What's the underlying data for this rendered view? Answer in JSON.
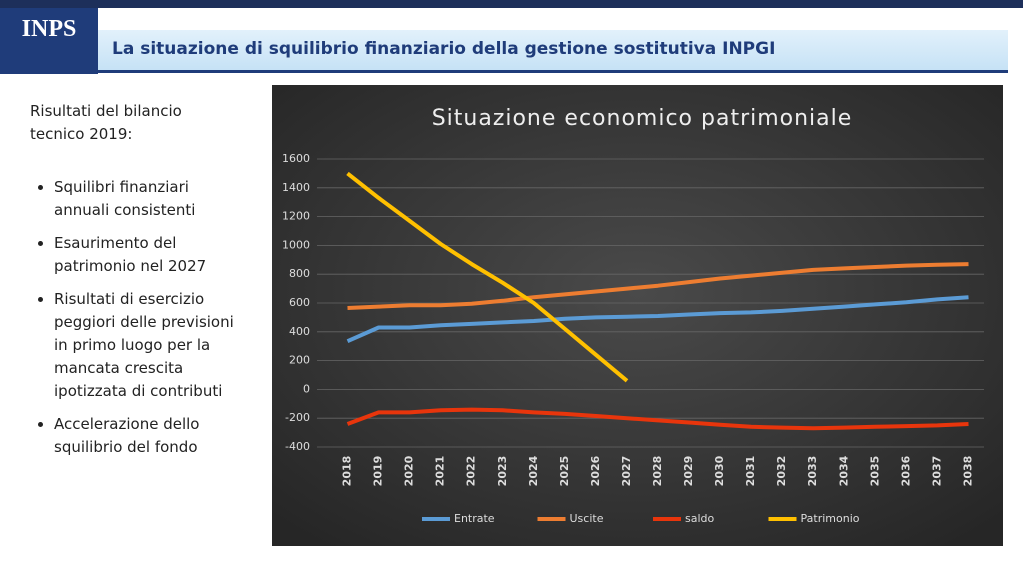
{
  "logo": "INPS",
  "slide_title": "La situazione di squilibrio finanziario della gestione sostitutiva INPGI",
  "intro": "Risultati del bilancio tecnico 2019:",
  "bullets": [
    "Squilibri finanziari annuali consistenti",
    "Esaurimento del patrimonio nel 2027",
    "Risultati di esercizio peggiori delle previsioni in primo luogo per la mancata crescita ipotizzata di contributi",
    "Accelerazione dello squilibrio del fondo"
  ],
  "chart_data": {
    "type": "line",
    "title": "Situazione economico patrimoniale",
    "categories": [
      "2018",
      "2019",
      "2020",
      "2021",
      "2022",
      "2023",
      "2024",
      "2025",
      "2026",
      "2027",
      "2028",
      "2029",
      "2030",
      "2031",
      "2032",
      "2033",
      "2034",
      "2035",
      "2036",
      "2037",
      "2038"
    ],
    "series": [
      {
        "name": "Entrate",
        "color": "#5b9bd5",
        "values": [
          335,
          430,
          430,
          445,
          455,
          465,
          475,
          490,
          500,
          505,
          510,
          520,
          530,
          535,
          545,
          560,
          575,
          590,
          605,
          625,
          640
        ]
      },
      {
        "name": "Uscite",
        "color": "#ed7d31",
        "values": [
          565,
          575,
          585,
          585,
          595,
          615,
          640,
          660,
          680,
          700,
          720,
          745,
          770,
          790,
          810,
          830,
          840,
          850,
          860,
          865,
          870
        ]
      },
      {
        "name": "saldo",
        "color": "#e8350c",
        "values": [
          -240,
          -160,
          -160,
          -145,
          -140,
          -145,
          -160,
          -170,
          -185,
          -200,
          -215,
          -230,
          -245,
          -260,
          -265,
          -270,
          -265,
          -260,
          -255,
          -250,
          -240
        ]
      },
      {
        "name": "Patrimonio",
        "color": "#ffc000",
        "values": [
          1500,
          1330,
          1170,
          1010,
          870,
          740,
          600,
          420,
          240,
          60,
          null,
          null,
          null,
          null,
          null,
          null,
          null,
          null,
          null,
          null,
          null
        ]
      }
    ],
    "ylim": [
      -400,
      1600
    ],
    "yticks": [
      -400,
      -200,
      0,
      200,
      400,
      600,
      800,
      1000,
      1200,
      1400,
      1600
    ],
    "grid": true,
    "legend": "bottom"
  }
}
